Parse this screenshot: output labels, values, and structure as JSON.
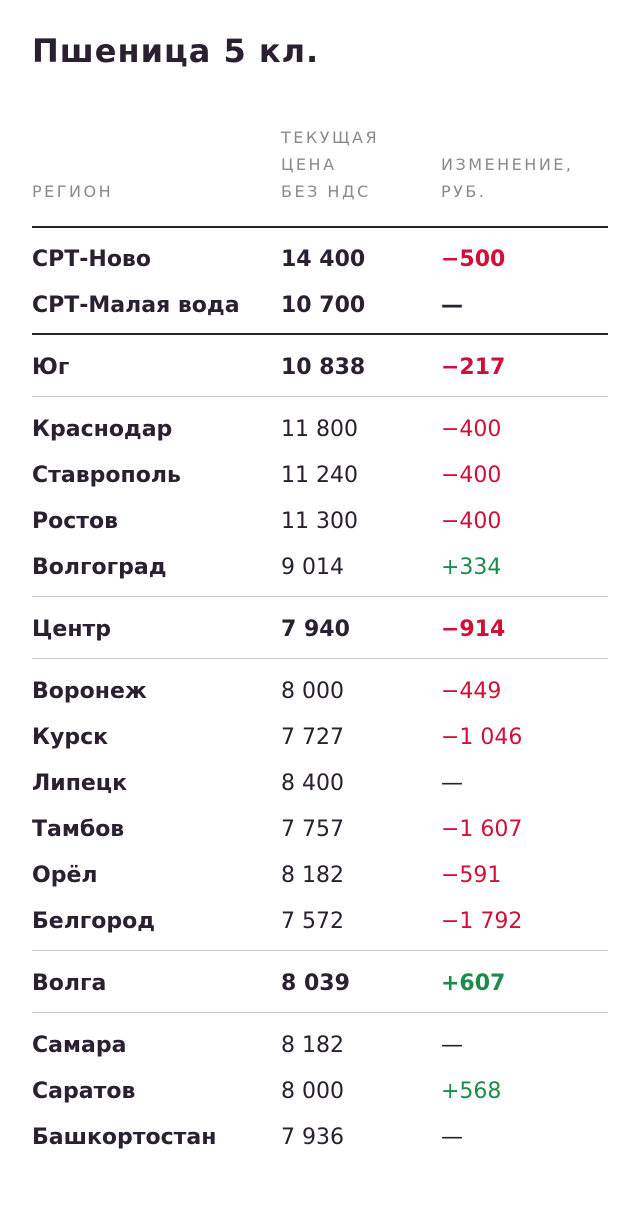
{
  "title": "Пшеница 5 кл.",
  "headers": {
    "region": "РЕГИОН",
    "price_line1": "ТЕКУЩАЯ",
    "price_line2": "ЦЕНА",
    "price_line3": "БЕЗ НДС",
    "change_line1": "ИЗМЕНЕНИЕ,",
    "change_line2": "РУБ."
  },
  "colors": {
    "negative": "#d0103a",
    "positive": "#1f8a4c",
    "text": "#2a2030",
    "header": "#8c8791"
  },
  "rows": [
    {
      "name": "СРТ-Ново",
      "price": "14 400",
      "change": "−500",
      "sign": "neg",
      "bold": true
    },
    {
      "name": "СРТ-Малая вода",
      "price": "10 700",
      "change": "—",
      "sign": "zero",
      "bold": true
    },
    {
      "name": "Юг",
      "price": "10 838",
      "change": "−217",
      "sign": "neg",
      "bold": true
    },
    {
      "name": "Краснодар",
      "price": "11 800",
      "change": "−400",
      "sign": "neg",
      "bold": false
    },
    {
      "name": "Ставрополь",
      "price": "11 240",
      "change": "−400",
      "sign": "neg",
      "bold": false
    },
    {
      "name": "Ростов",
      "price": "11 300",
      "change": "−400",
      "sign": "neg",
      "bold": false
    },
    {
      "name": "Волгоград",
      "price": "9 014",
      "change": "+334",
      "sign": "pos",
      "bold": false
    },
    {
      "name": "Центр",
      "price": "7 940",
      "change": "−914",
      "sign": "neg",
      "bold": true
    },
    {
      "name": "Воронеж",
      "price": "8 000",
      "change": "−449",
      "sign": "neg",
      "bold": false
    },
    {
      "name": "Курск",
      "price": "7 727",
      "change": "−1 046",
      "sign": "neg",
      "bold": false
    },
    {
      "name": "Липецк",
      "price": "8 400",
      "change": "—",
      "sign": "zero",
      "bold": false
    },
    {
      "name": "Тамбов",
      "price": "7 757",
      "change": "−1 607",
      "sign": "neg",
      "bold": false
    },
    {
      "name": "Орёл",
      "price": "8 182",
      "change": "−591",
      "sign": "neg",
      "bold": false
    },
    {
      "name": "Белгород",
      "price": "7 572",
      "change": "−1 792",
      "sign": "neg",
      "bold": false
    },
    {
      "name": "Волга",
      "price": "8 039",
      "change": "+607",
      "sign": "pos",
      "bold": true
    },
    {
      "name": "Самара",
      "price": "8 182",
      "change": "—",
      "sign": "zero",
      "bold": false
    },
    {
      "name": "Саратов",
      "price": "8 000",
      "change": "+568",
      "sign": "pos",
      "bold": false
    },
    {
      "name": "Башкортостан",
      "price": "7 936",
      "change": "—",
      "sign": "zero",
      "bold": false
    }
  ]
}
